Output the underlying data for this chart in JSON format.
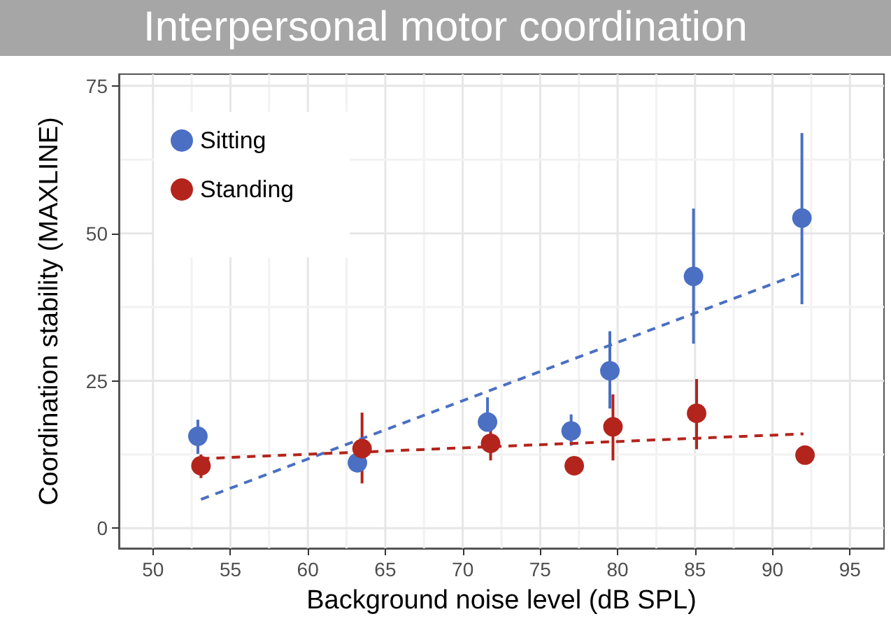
{
  "chart_data": {
    "type": "scatter",
    "title": "Interpersonal motor coordination",
    "xlabel": "Background noise level (dB SPL)",
    "ylabel": "Coordination stability (MAXLINE)",
    "xlim": [
      47.8,
      97.2
    ],
    "xticks": [
      50,
      55,
      60,
      65,
      70,
      75,
      80,
      85,
      90,
      95
    ],
    "ylim": [
      -3.4,
      77
    ],
    "yticks": [
      0,
      25,
      50,
      75
    ],
    "grid": true,
    "legend": "top left",
    "marker": "circle",
    "series": [
      {
        "name": "Sitting",
        "color": "#4a6fc3",
        "x": [
          52.9,
          63.2,
          71.6,
          77.0,
          79.5,
          84.9,
          91.9
        ],
        "values": [
          15.6,
          11.1,
          18.0,
          16.5,
          26.7,
          42.7,
          52.6
        ],
        "errors": [
          [
            12.6,
            18.4
          ],
          null,
          [
            18.0,
            22.2
          ],
          [
            14,
            19.3
          ],
          [
            20.3,
            33.4
          ],
          [
            31.3,
            54.2
          ],
          [
            38,
            67
          ]
        ]
      },
      {
        "name": "Standing",
        "color": "#b3241c",
        "x": [
          53.1,
          63.5,
          71.8,
          77.2,
          79.7,
          85.1,
          92.1
        ],
        "values": [
          10.6,
          13.5,
          14.4,
          10.6,
          17.2,
          19.5,
          12.4
        ],
        "errors": [
          [
            8.5,
            12.5
          ],
          [
            7.6,
            19.6
          ],
          [
            11.5,
            17
          ],
          null,
          [
            11.5,
            22.7
          ],
          [
            13.4,
            25.3
          ],
          null
        ]
      },
      {
        "type": "line",
        "color": "#4a6fc3",
        "line_style": "dashed",
        "marker": "none",
        "x": [
          53.1,
          92
        ],
        "values": [
          4.9,
          43.4
        ]
      },
      {
        "type": "line",
        "color": "#b3241c",
        "line_style": "dashed",
        "marker": "none",
        "x": [
          53.1,
          92
        ],
        "values": [
          11.8,
          16.0
        ]
      }
    ]
  }
}
